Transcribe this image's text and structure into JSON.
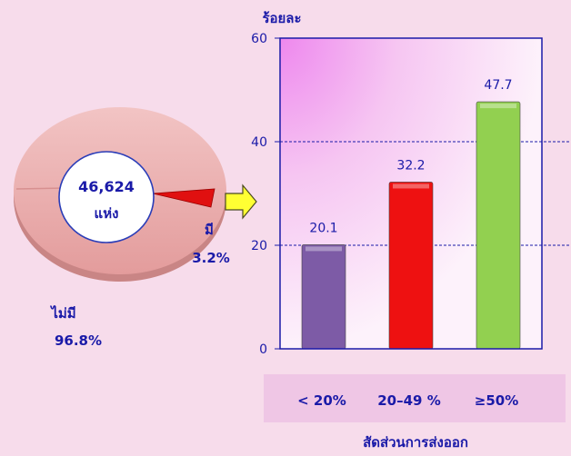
{
  "pie": {
    "center_value": "46,624",
    "center_unit": "แห่ง",
    "slices": [
      {
        "label": "ไม่มี",
        "value": 96.8,
        "display": "96.8%",
        "color": "#e8a8a8"
      },
      {
        "label": "มี",
        "value": 3.2,
        "display": "3.2%",
        "color": "#e01010"
      }
    ]
  },
  "chart_data": {
    "type": "bar",
    "title": "",
    "ylabel": "ร้อยละ",
    "xlabel": "สัดส่วนการส่งออก",
    "ylim": [
      0,
      60
    ],
    "yticks": [
      0,
      20,
      40,
      60
    ],
    "grid": true,
    "categories": [
      "< 20%",
      "20–49 %",
      "≥50%"
    ],
    "values": [
      20.1,
      32.2,
      47.7
    ],
    "value_labels": [
      "20.1",
      "32.2",
      "47.7"
    ],
    "colors": [
      "#7d5ba6",
      "#ee1111",
      "#92d050"
    ]
  },
  "arrow_icon": "right-arrow-icon"
}
